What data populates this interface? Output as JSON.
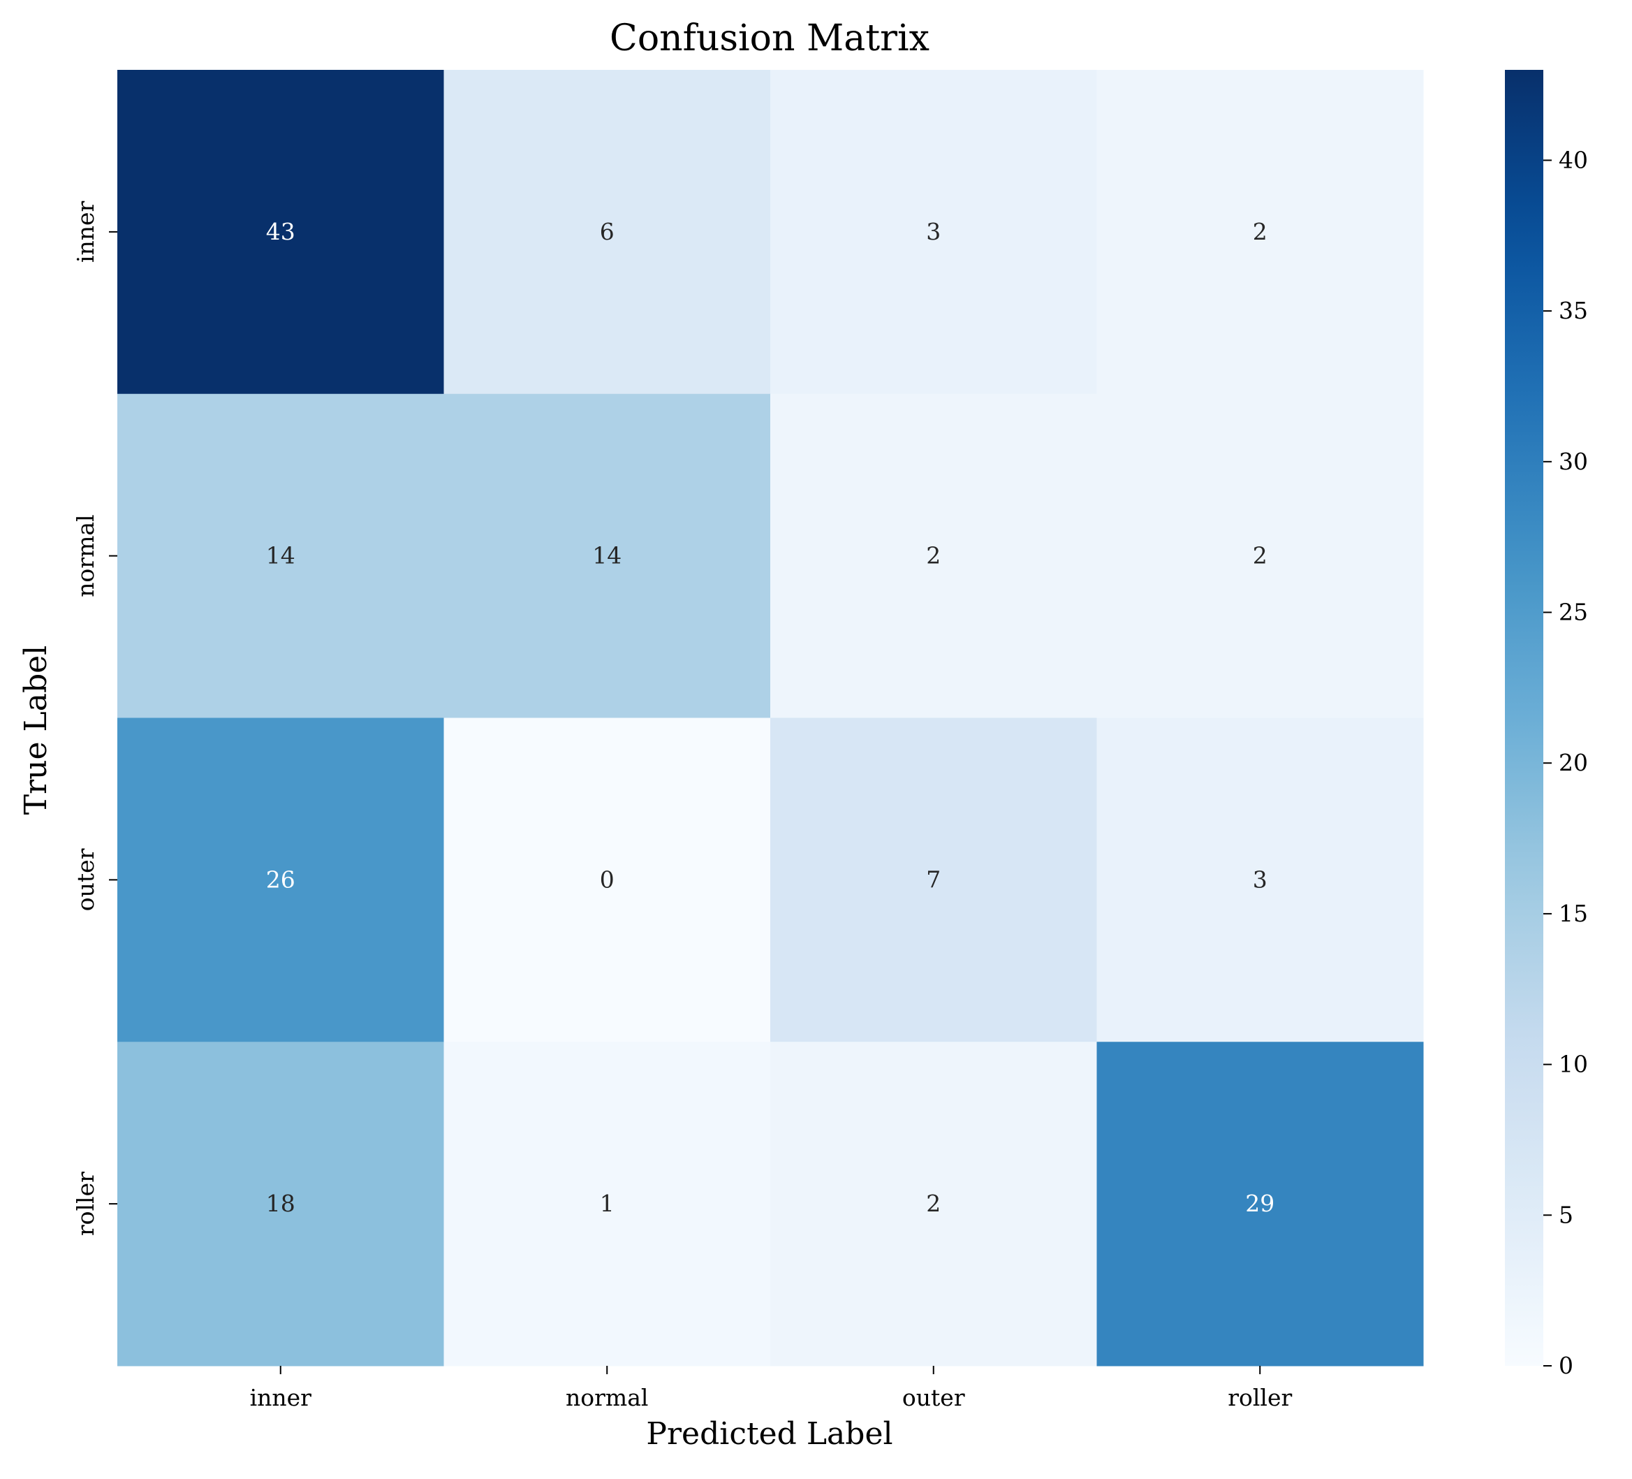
{
  "chart_data": {
    "type": "heatmap",
    "title": "Confusion Matrix",
    "xlabel": "Predicted Label",
    "ylabel": "True Label",
    "x_categories": [
      "inner",
      "normal",
      "outer",
      "roller"
    ],
    "y_categories": [
      "inner",
      "normal",
      "outer",
      "roller"
    ],
    "values": [
      [
        43,
        6,
        3,
        2
      ],
      [
        14,
        14,
        2,
        2
      ],
      [
        26,
        0,
        7,
        3
      ],
      [
        18,
        1,
        2,
        29
      ]
    ],
    "colorbar": {
      "range": [
        0,
        43
      ],
      "ticks": [
        0,
        5,
        10,
        15,
        20,
        25,
        30,
        35,
        40
      ],
      "colormap": "Blues",
      "low_color": "#f7fbff",
      "high_color": "#08306b"
    },
    "annotations": true,
    "grid": false
  }
}
